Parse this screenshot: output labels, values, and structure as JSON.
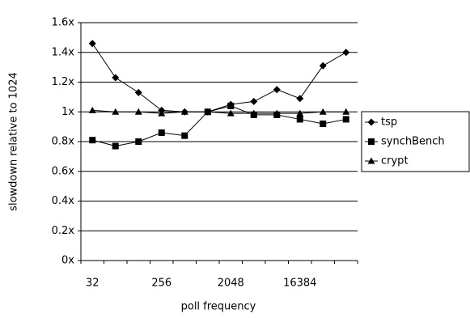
{
  "chart_data": {
    "type": "line",
    "y_label": "slowdown relative to 1024",
    "x_label": "poll frequency",
    "categories": [
      "32",
      null,
      null,
      "256",
      null,
      null,
      "2048",
      null,
      null,
      "16384",
      null,
      null
    ],
    "series": [
      {
        "name": "tsp",
        "color": "#000000",
        "marker": "diamond",
        "values": [
          1.46,
          1.23,
          1.13,
          1.01,
          1.0,
          1.0,
          1.05,
          1.07,
          1.15,
          1.09,
          1.31,
          1.4
        ]
      },
      {
        "name": "synchBench",
        "color": "#000000",
        "marker": "square",
        "values": [
          0.81,
          0.77,
          0.8,
          0.86,
          0.84,
          1.0,
          1.04,
          0.98,
          0.98,
          0.95,
          0.92,
          0.95
        ]
      },
      {
        "name": "crypt",
        "color": "#000000",
        "marker": "triangle",
        "values": [
          1.01,
          1.0,
          1.0,
          0.99,
          1.0,
          1.0,
          0.99,
          0.99,
          0.99,
          0.99,
          1.0,
          1.0
        ]
      }
    ],
    "ylim": [
      0,
      1.6
    ],
    "yticks": [
      {
        "value": 0,
        "label": "0x"
      },
      {
        "value": 0.2,
        "label": "0.2x"
      },
      {
        "value": 0.4,
        "label": "0.4x"
      },
      {
        "value": 0.6,
        "label": "0.6x"
      },
      {
        "value": 0.8,
        "label": "0.8x"
      },
      {
        "value": 1,
        "label": "1x"
      },
      {
        "value": 1.2,
        "label": "1.2x"
      },
      {
        "value": 1.4,
        "label": "1.4x"
      },
      {
        "value": 1.6,
        "label": "1.6x"
      }
    ],
    "grid": true,
    "legend": "right"
  }
}
